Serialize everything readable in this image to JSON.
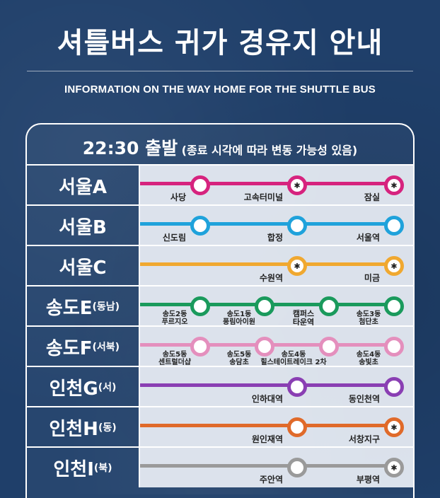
{
  "title": "셔틀버스 귀가 경유지 안내",
  "subtitle": "INFORMATION ON THE WAY HOME FOR THE SHUTTLE BUS",
  "header": {
    "time": "22:30 출발",
    "note": "(종료 시각에 따라 변동 가능성 있음)"
  },
  "routes": [
    {
      "name": "서울A",
      "color": "#d6237e",
      "stops": [
        {
          "label": "사당"
        },
        {
          "label": "고속터미널",
          "star": true
        },
        {
          "label": "잠실",
          "star": true
        }
      ]
    },
    {
      "name": "서울B",
      "color": "#1fa2db",
      "stops": [
        {
          "label": "신도림"
        },
        {
          "label": "합정"
        },
        {
          "label": "서울역"
        }
      ]
    },
    {
      "name": "서울C",
      "color": "#f0a830",
      "stops": [
        {
          "label": "수원역",
          "star": true
        },
        {
          "label": "미금",
          "star": true
        }
      ]
    },
    {
      "name": "송도E",
      "sub": "(동남)",
      "color": "#1a9a5c",
      "stops": [
        {
          "line1": "송도2동",
          "line2": "푸르지오"
        },
        {
          "line1": "송도1동",
          "line2": "풍림아이원"
        },
        {
          "line1": "캠퍼스",
          "line2": "타운역"
        },
        {
          "line1": "송도3동",
          "line2": "첨단초"
        }
      ]
    },
    {
      "name": "송도F",
      "sub": "(서북)",
      "color": "#e48fbd",
      "stops": [
        {
          "line1": "송도5동",
          "line2": "센트럴더샵"
        },
        {
          "line1": "송도5동",
          "line2": "송담초"
        },
        {
          "line1": "송도4동",
          "line2": "힐스테이트레이크 2차"
        },
        {
          "line1": "송도4동",
          "line2": "송빛초"
        }
      ]
    },
    {
      "name": "인천G",
      "sub": "(서)",
      "color": "#8a3fb3",
      "stops": [
        {
          "label": "인하대역"
        },
        {
          "label": "동인천역"
        }
      ]
    },
    {
      "name": "인천H",
      "sub": "(동)",
      "color": "#e06a2a",
      "stops": [
        {
          "label": "원인재역"
        },
        {
          "label": "서창지구",
          "star": true
        }
      ]
    },
    {
      "name": "인천I",
      "sub": "(북)",
      "color": "#9a9a9a",
      "stops": [
        {
          "label": "주안역"
        },
        {
          "label": "부평역",
          "star": true
        }
      ]
    }
  ]
}
